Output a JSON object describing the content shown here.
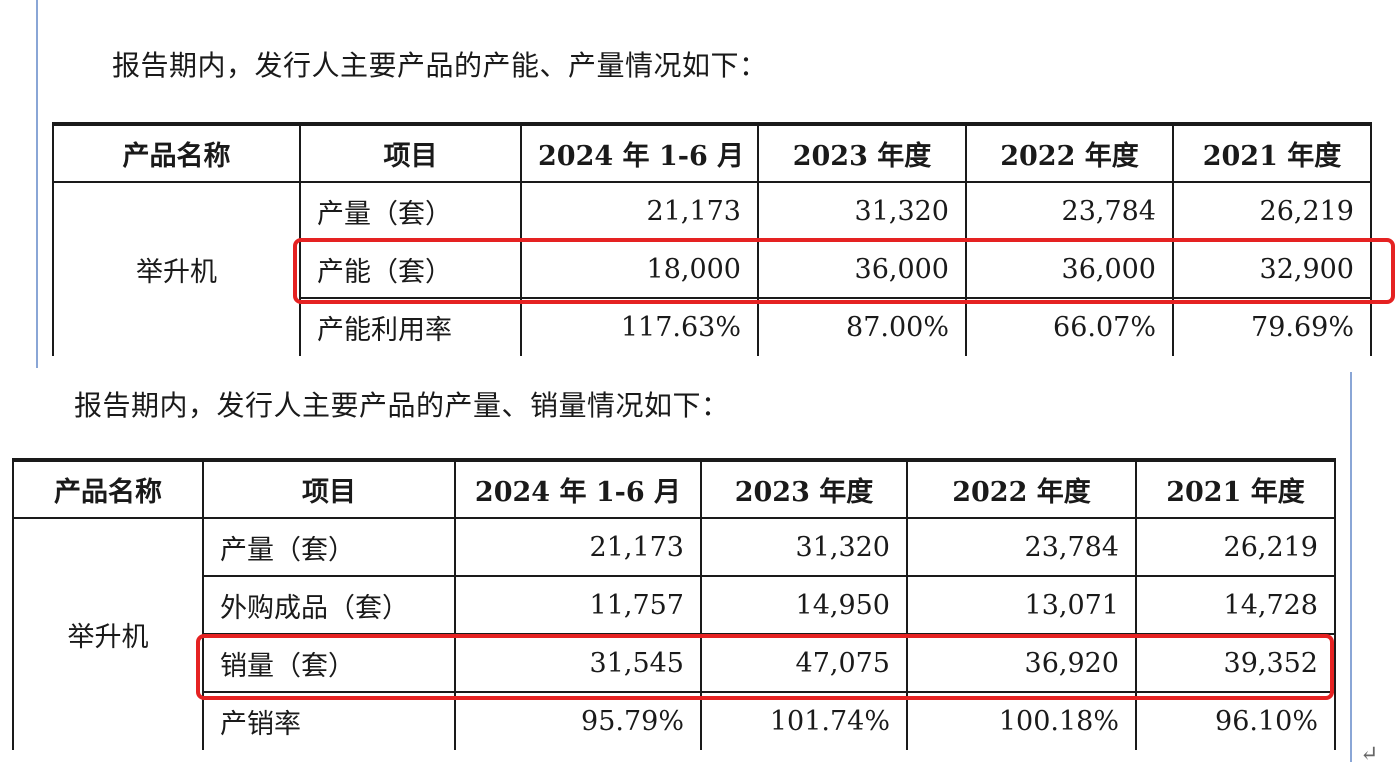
{
  "section1": {
    "intro": "报告期内，发行人主要产品的产能、产量情况如下：",
    "headers": [
      "产品名称",
      "项目",
      "2024 年 1-6 月",
      "2023 年度",
      "2022 年度",
      "2021 年度"
    ],
    "product": "举升机",
    "rows": [
      {
        "label": "产量（套）",
        "values": [
          "21,173",
          "31,320",
          "23,784",
          "26,219"
        ]
      },
      {
        "label": "产能（套）",
        "values": [
          "18,000",
          "36,000",
          "36,000",
          "32,900"
        ]
      },
      {
        "label": "产能利用率",
        "values": [
          "117.63%",
          "87.00%",
          "66.07%",
          "79.69%"
        ]
      }
    ]
  },
  "section2": {
    "intro": "报告期内，发行人主要产品的产量、销量情况如下：",
    "headers": [
      "产品名称",
      "项目",
      "2024 年 1-6 月",
      "2023 年度",
      "2022 年度",
      "2021 年度"
    ],
    "product": "举升机",
    "rows": [
      {
        "label": "产量（套）",
        "values": [
          "21,173",
          "31,320",
          "23,784",
          "26,219"
        ]
      },
      {
        "label": "外购成品（套）",
        "values": [
          "11,757",
          "14,950",
          "13,071",
          "14,728"
        ]
      },
      {
        "label": "销量（套）",
        "values": [
          "31,545",
          "47,075",
          "36,920",
          "39,352"
        ]
      },
      {
        "label": "产销率",
        "values": [
          "95.79%",
          "101.74%",
          "100.18%",
          "96.10%"
        ]
      }
    ]
  },
  "paragraph_mark": "↵",
  "highlight_color": "#e52222"
}
